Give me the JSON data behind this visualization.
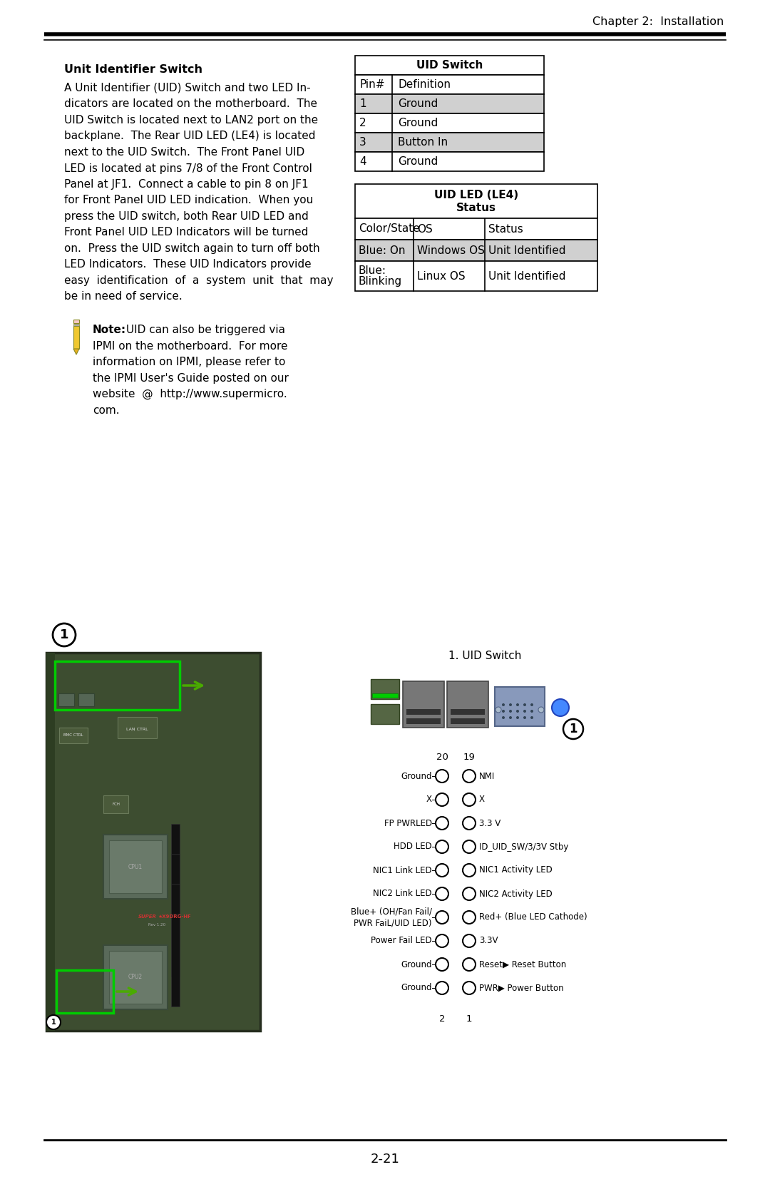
{
  "page_header": "Chapter 2:  Installation",
  "section_title": "Unit Identifier Switch",
  "body_lines": [
    "A Unit Identifier (UID) Switch and two LED In-",
    "dicators are located on the motherboard.  The",
    "UID Switch is located next to LAN2 port on the",
    "backplane.  The Rear UID LED (LE4) is located",
    "next to the UID Switch.  The Front Panel UID",
    "LED is located at pins 7/8 of the Front Control",
    "Panel at JF1.  Connect a cable to pin 8 on JF1",
    "for Front Panel UID LED indication.  When you",
    "press the UID switch, both Rear UID LED and",
    "Front Panel UID LED Indicators will be turned",
    "on.  Press the UID switch again to turn off both",
    "LED Indicators.  These UID Indicators provide",
    "easy  identification  of  a  system  unit  that  may",
    "be in need of service."
  ],
  "note_lines": [
    "IPMI on the motherboard.  For more",
    "information on IPMI, please refer to",
    "the IPMI User's Guide posted on our",
    "website  @  http://www.supermicro.",
    "com."
  ],
  "note_bold": "Note:",
  "note_first_rest": " UID can also be triggered via",
  "uid_switch_table": {
    "title": "UID Switch",
    "col1": "Pin#",
    "col2": "Definition",
    "rows": [
      {
        "pin": "1",
        "def": "Ground",
        "shaded": true
      },
      {
        "pin": "2",
        "def": "Ground",
        "shaded": false
      },
      {
        "pin": "3",
        "def": "Button In",
        "shaded": true
      },
      {
        "pin": "4",
        "def": "Ground",
        "shaded": false
      }
    ]
  },
  "uid_led_table": {
    "title1": "UID LED (LE4)",
    "title2": "Status",
    "col1": "Color/State",
    "col2": "OS",
    "col3": "Status",
    "rows": [
      {
        "c1": "Blue: On",
        "c2": "Windows OS",
        "c3": "Unit Identified",
        "shaded": true
      },
      {
        "c1a": "Blue:",
        "c1b": "Blinking",
        "c2": "Linux OS",
        "c3": "Unit Identified",
        "shaded": false
      }
    ]
  },
  "diagram_label": "1. UID Switch",
  "jf1_rows": [
    {
      "left": "Ground",
      "right": "NMI"
    },
    {
      "left": "X",
      "right": "X"
    },
    {
      "left": "FP PWRLED",
      "right": "3.3 V"
    },
    {
      "left": "HDD LED",
      "right": "ID_UID_SW/3/3V Stby"
    },
    {
      "left": "NIC1 Link LED",
      "right": "NIC1 Activity LED"
    },
    {
      "left": "NIC2 Link LED",
      "right": "NIC2 Activity LED"
    },
    {
      "left2a": "Blue+ (OH/Fan Fail/",
      "left2b": "PWR FaiL/UID LED)",
      "right": "Red+ (Blue LED Cathode)"
    },
    {
      "left": "Power Fail LED",
      "right": "3.3V"
    },
    {
      "left": "Ground",
      "right": "Reset▶ Reset Button"
    },
    {
      "left": "Ground",
      "right": "PWR▶ Power Button"
    }
  ],
  "bg_color": "#ffffff",
  "shaded_color": "#d0d0d0",
  "border_color": "#000000",
  "text_color": "#000000",
  "pcb_color": "#3a4a30",
  "pcb_edge": "#2a3520",
  "green_box": "#00cc00",
  "green_arrow": "#4aaa00",
  "page_number": "2-21"
}
